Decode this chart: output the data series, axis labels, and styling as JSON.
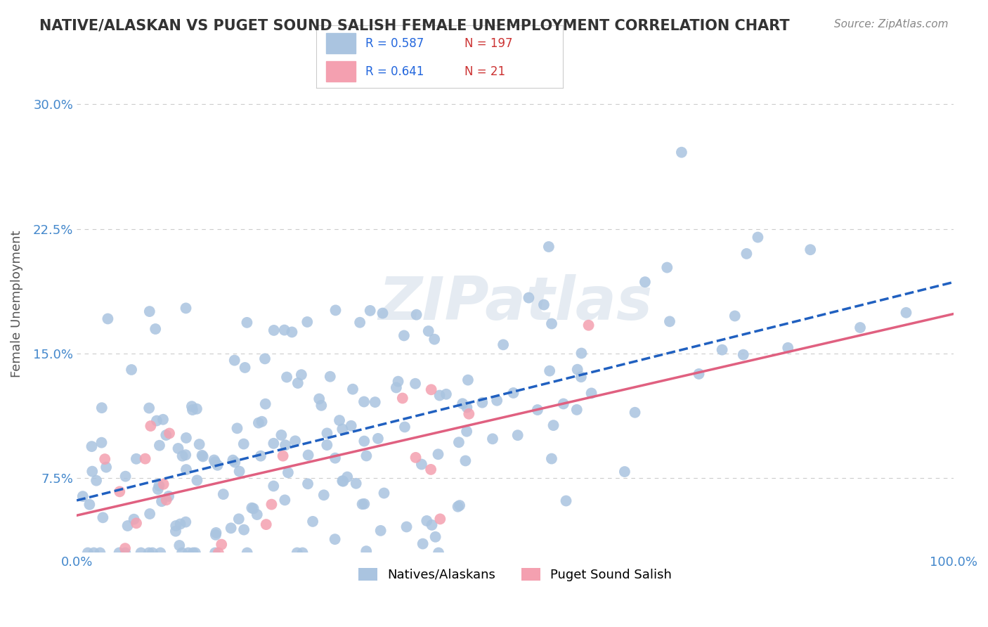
{
  "title": "NATIVE/ALASKAN VS PUGET SOUND SALISH FEMALE UNEMPLOYMENT CORRELATION CHART",
  "source": "Source: ZipAtlas.com",
  "xlabel": "",
  "ylabel": "Female Unemployment",
  "x_min": 0.0,
  "x_max": 1.0,
  "y_min": 0.03,
  "y_max": 0.33,
  "y_ticks": [
    0.075,
    0.15,
    0.225,
    0.3
  ],
  "y_tick_labels": [
    "7.5%",
    "15.0%",
    "22.5%",
    "30.0%"
  ],
  "x_ticks": [
    0.0,
    1.0
  ],
  "x_tick_labels": [
    "0.0%",
    "100.0%"
  ],
  "series1_color": "#aac4e0",
  "series2_color": "#f4a0b0",
  "line1_color": "#2060c0",
  "line2_color": "#e06080",
  "R1": 0.587,
  "N1": 197,
  "R2": 0.641,
  "N2": 21,
  "legend_label1": "Natives/Alaskans",
  "legend_label2": "Puget Sound Salish",
  "watermark": "ZIPatlas",
  "background_color": "#ffffff",
  "grid_color": "#cccccc",
  "title_color": "#333333",
  "axis_label_color": "#555555",
  "tick_label_color": "#4488cc",
  "seed1": 42,
  "seed2": 123
}
